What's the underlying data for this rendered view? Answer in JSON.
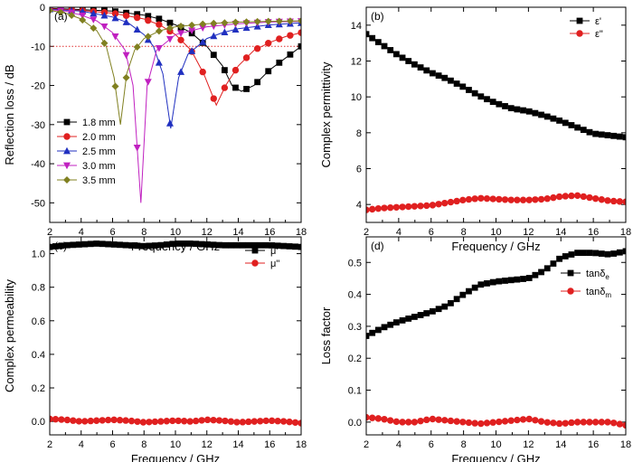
{
  "chart_data": [
    {
      "type": "line",
      "panel_label": "(a)",
      "xlabel": "Frequency / GHz",
      "ylabel": "Reflection loss / dB",
      "xlim": [
        2,
        18
      ],
      "ylim": [
        -55,
        0
      ],
      "xticks": [
        "2",
        "4",
        "6",
        "8",
        "10",
        "12",
        "14",
        "16",
        "18"
      ],
      "yticks": [
        "0",
        "-10",
        "-20",
        "-30",
        "-40",
        "-50"
      ],
      "reference_line": {
        "y": -10,
        "style": "dotted",
        "color": "#e03030"
      },
      "legend_position": "bottom-left",
      "series": [
        {
          "name": "1.8 mm",
          "color": "#000000",
          "marker": "square",
          "points": [
            [
              2,
              -0.3
            ],
            [
              4,
              -0.6
            ],
            [
              6,
              -1.0
            ],
            [
              8,
              -2.0
            ],
            [
              9,
              -3.0
            ],
            [
              10,
              -4.5
            ],
            [
              11,
              -6.5
            ],
            [
              12,
              -10
            ],
            [
              13,
              -15
            ],
            [
              13.6,
              -20
            ],
            [
              14.2,
              -21.5
            ],
            [
              15,
              -20
            ],
            [
              16,
              -16
            ],
            [
              17,
              -13
            ],
            [
              18,
              -10
            ]
          ]
        },
        {
          "name": "2.0 mm",
          "color": "#e02020",
          "marker": "circle",
          "points": [
            [
              2,
              -0.4
            ],
            [
              4,
              -0.8
            ],
            [
              6,
              -1.5
            ],
            [
              8,
              -3.0
            ],
            [
              9,
              -4.5
            ],
            [
              10,
              -7
            ],
            [
              11,
              -11
            ],
            [
              11.8,
              -17
            ],
            [
              12.6,
              -25
            ],
            [
              13.2,
              -20
            ],
            [
              14,
              -15
            ],
            [
              15,
              -11
            ],
            [
              16,
              -9
            ],
            [
              17,
              -7.5
            ],
            [
              18,
              -6.5
            ]
          ]
        },
        {
          "name": "2.5 mm",
          "color": "#2030c0",
          "marker": "triangle-up",
          "points": [
            [
              2,
              -0.5
            ],
            [
              4,
              -1.0
            ],
            [
              6,
              -2.5
            ],
            [
              7,
              -4
            ],
            [
              8,
              -7
            ],
            [
              8.6,
              -10
            ],
            [
              9.2,
              -17
            ],
            [
              9.7,
              -31
            ],
            [
              10.2,
              -18
            ],
            [
              10.8,
              -12
            ],
            [
              12,
              -8
            ],
            [
              13,
              -6.5
            ],
            [
              14,
              -5.5
            ],
            [
              16,
              -4.5
            ],
            [
              18,
              -4
            ]
          ]
        },
        {
          "name": "3.0 mm",
          "color": "#c020c0",
          "marker": "triangle-down",
          "points": [
            [
              2,
              -0.6
            ],
            [
              3,
              -1.0
            ],
            [
              4,
              -2.0
            ],
            [
              5,
              -3.5
            ],
            [
              6,
              -6.5
            ],
            [
              6.8,
              -11
            ],
            [
              7.3,
              -20
            ],
            [
              7.8,
              -50
            ],
            [
              8.2,
              -20
            ],
            [
              8.8,
              -11
            ],
            [
              10,
              -7
            ],
            [
              12,
              -5
            ],
            [
              14,
              -4.2
            ],
            [
              16,
              -3.8
            ],
            [
              18,
              -3.6
            ]
          ]
        },
        {
          "name": "3.5 mm",
          "color": "#808020",
          "marker": "diamond",
          "points": [
            [
              2,
              -0.8
            ],
            [
              3,
              -1.5
            ],
            [
              4,
              -3.0
            ],
            [
              5,
              -6.0
            ],
            [
              5.6,
              -10
            ],
            [
              6.1,
              -18
            ],
            [
              6.5,
              -30
            ],
            [
              6.9,
              -17
            ],
            [
              7.4,
              -11
            ],
            [
              8,
              -8
            ],
            [
              9,
              -6
            ],
            [
              10,
              -5
            ],
            [
              12,
              -4.2
            ],
            [
              14,
              -3.8
            ],
            [
              16,
              -3.6
            ],
            [
              18,
              -3.5
            ]
          ]
        }
      ]
    },
    {
      "type": "scatter",
      "panel_label": "(b)",
      "xlabel": "Frequency / GHz",
      "ylabel": "Complex permittivity",
      "xlim": [
        2,
        18
      ],
      "ylim": [
        3,
        15
      ],
      "xticks": [
        "2",
        "4",
        "6",
        "8",
        "10",
        "12",
        "14",
        "16",
        "18"
      ],
      "yticks": [
        "4",
        "6",
        "8",
        "10",
        "12",
        "14"
      ],
      "legend_position": "top-right",
      "series": [
        {
          "name": "ε'",
          "color": "#000000",
          "marker": "square",
          "points": [
            [
              2,
              13.5
            ],
            [
              3,
              12.9
            ],
            [
              4,
              12.3
            ],
            [
              5,
              11.8
            ],
            [
              6,
              11.35
            ],
            [
              7,
              11.0
            ],
            [
              8,
              10.55
            ],
            [
              9,
              10.05
            ],
            [
              10,
              9.65
            ],
            [
              11,
              9.35
            ],
            [
              12,
              9.2
            ],
            [
              13,
              8.95
            ],
            [
              14,
              8.65
            ],
            [
              15,
              8.3
            ],
            [
              16,
              7.95
            ],
            [
              17,
              7.85
            ],
            [
              18,
              7.75
            ]
          ]
        },
        {
          "name": "ε\"",
          "color": "#e02020",
          "marker": "circle",
          "points": [
            [
              2,
              3.7
            ],
            [
              3,
              3.8
            ],
            [
              4,
              3.85
            ],
            [
              5,
              3.9
            ],
            [
              6,
              3.95
            ],
            [
              7,
              4.1
            ],
            [
              8,
              4.25
            ],
            [
              9,
              4.35
            ],
            [
              10,
              4.3
            ],
            [
              11,
              4.25
            ],
            [
              12,
              4.25
            ],
            [
              13,
              4.3
            ],
            [
              14,
              4.45
            ],
            [
              15,
              4.5
            ],
            [
              16,
              4.35
            ],
            [
              17,
              4.2
            ],
            [
              18,
              4.15
            ]
          ]
        }
      ]
    },
    {
      "type": "scatter",
      "panel_label": "(c)",
      "xlabel": "Frequency / GHz",
      "ylabel": "Complex permeability",
      "xlim": [
        2,
        18
      ],
      "ylim": [
        -0.08,
        1.1
      ],
      "xticks": [
        "2",
        "4",
        "6",
        "8",
        "10",
        "12",
        "14",
        "16",
        "18"
      ],
      "yticks": [
        "0.0",
        "0.2",
        "0.4",
        "0.6",
        "0.8",
        "1.0"
      ],
      "legend_position": "top-right",
      "series": [
        {
          "name": "μ'",
          "color": "#000000",
          "marker": "square",
          "points": [
            [
              2,
              1.04
            ],
            [
              3,
              1.05
            ],
            [
              4,
              1.055
            ],
            [
              5,
              1.06
            ],
            [
              6,
              1.055
            ],
            [
              7,
              1.05
            ],
            [
              8,
              1.045
            ],
            [
              9,
              1.05
            ],
            [
              10,
              1.06
            ],
            [
              11,
              1.06
            ],
            [
              12,
              1.055
            ],
            [
              13,
              1.05
            ],
            [
              14,
              1.05
            ],
            [
              15,
              1.05
            ],
            [
              16,
              1.05
            ],
            [
              17,
              1.045
            ],
            [
              18,
              1.04
            ]
          ]
        },
        {
          "name": "μ\"",
          "color": "#e02020",
          "marker": "circle",
          "points": [
            [
              2,
              0.015
            ],
            [
              3,
              0.01
            ],
            [
              4,
              0.0
            ],
            [
              5,
              0.005
            ],
            [
              6,
              0.01
            ],
            [
              7,
              0.005
            ],
            [
              8,
              -0.005
            ],
            [
              9,
              0.0
            ],
            [
              10,
              0.005
            ],
            [
              11,
              0.0
            ],
            [
              12,
              0.01
            ],
            [
              13,
              0.005
            ],
            [
              14,
              -0.005
            ],
            [
              15,
              0.0
            ],
            [
              16,
              0.005
            ],
            [
              17,
              0.0
            ],
            [
              18,
              -0.01
            ]
          ]
        }
      ]
    },
    {
      "type": "scatter",
      "panel_label": "(d)",
      "xlabel": "Frequency / GHz",
      "ylabel": "Loss factor",
      "xlim": [
        2,
        18
      ],
      "ylim": [
        -0.04,
        0.58
      ],
      "xticks": [
        "2",
        "4",
        "6",
        "8",
        "10",
        "12",
        "14",
        "16",
        "18"
      ],
      "yticks": [
        "0.0",
        "0.1",
        "0.2",
        "0.3",
        "0.4",
        "0.5"
      ],
      "legend_position": "right",
      "series": [
        {
          "name": "tanδe",
          "color": "#000000",
          "marker": "square",
          "points": [
            [
              2,
              0.27
            ],
            [
              3,
              0.295
            ],
            [
              4,
              0.315
            ],
            [
              5,
              0.33
            ],
            [
              6,
              0.345
            ],
            [
              7,
              0.365
            ],
            [
              8,
              0.4
            ],
            [
              9,
              0.43
            ],
            [
              10,
              0.44
            ],
            [
              11,
              0.445
            ],
            [
              12,
              0.45
            ],
            [
              13,
              0.475
            ],
            [
              14,
              0.515
            ],
            [
              15,
              0.53
            ],
            [
              16,
              0.53
            ],
            [
              17,
              0.525
            ],
            [
              18,
              0.535
            ]
          ]
        },
        {
          "name": "tanδm",
          "color": "#e02020",
          "marker": "circle",
          "points": [
            [
              2,
              0.015
            ],
            [
              3,
              0.01
            ],
            [
              4,
              0.0
            ],
            [
              5,
              0.0
            ],
            [
              6,
              0.01
            ],
            [
              7,
              0.005
            ],
            [
              8,
              0.0
            ],
            [
              9,
              -0.005
            ],
            [
              10,
              0.0
            ],
            [
              11,
              0.005
            ],
            [
              12,
              0.01
            ],
            [
              13,
              0.0
            ],
            [
              14,
              -0.005
            ],
            [
              15,
              0.0
            ],
            [
              16,
              0.0
            ],
            [
              17,
              0.0
            ],
            [
              18,
              -0.01
            ]
          ]
        }
      ]
    }
  ]
}
